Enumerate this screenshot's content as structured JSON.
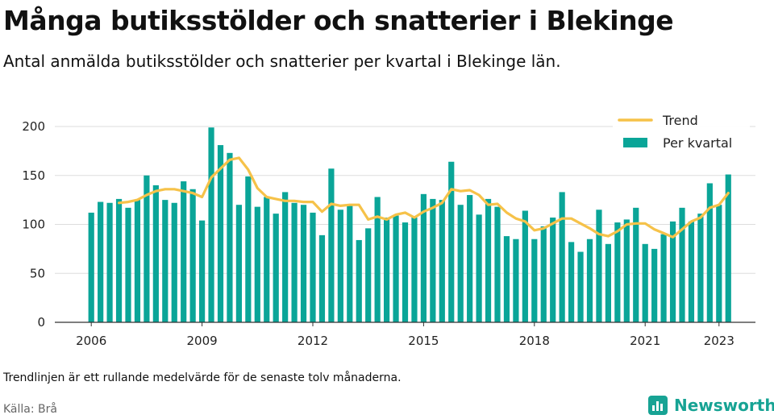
{
  "header": {
    "title": "Många butiksstölder och snatterier i Blekinge",
    "subtitle": "Antal anmälda butiksstölder och snatterier per kvartal i Blekinge län."
  },
  "footer": {
    "note": "Trendlinjen är ett rullande medelvärde för de senaste tolv månaderna.",
    "source": "Källa: Brå",
    "brand": "Newsworthy"
  },
  "colors": {
    "bars": "#0aa598",
    "trend": "#f6c249",
    "grid": "#dddddd"
  },
  "chart_data": {
    "type": "bar",
    "title": "Många butiksstölder och snatterier i Blekinge",
    "subtitle": "Antal anmälda butiksstölder och snatterier per kvartal i Blekinge län.",
    "xlabel": "",
    "ylabel": "",
    "ylim": [
      0,
      200
    ],
    "yticks": [
      "0",
      "50",
      "100",
      "150",
      "200"
    ],
    "xticks": [
      {
        "label": "2006",
        "year": 2006
      },
      {
        "label": "2009",
        "year": 2009
      },
      {
        "label": "2012",
        "year": 2012
      },
      {
        "label": "2015",
        "year": 2015
      },
      {
        "label": "2018",
        "year": 2018
      },
      {
        "label": "2021",
        "year": 2021
      },
      {
        "label": "2023",
        "year": 2023
      }
    ],
    "grid": true,
    "legend_position": "top-right",
    "start": "2006 Q1",
    "categories": [
      "2006 Q1",
      "2006 Q2",
      "2006 Q3",
      "2006 Q4",
      "2007 Q1",
      "2007 Q2",
      "2007 Q3",
      "2007 Q4",
      "2008 Q1",
      "2008 Q2",
      "2008 Q3",
      "2008 Q4",
      "2009 Q1",
      "2009 Q2",
      "2009 Q3",
      "2009 Q4",
      "2010 Q1",
      "2010 Q2",
      "2010 Q3",
      "2010 Q4",
      "2011 Q1",
      "2011 Q2",
      "2011 Q3",
      "2011 Q4",
      "2012 Q1",
      "2012 Q2",
      "2012 Q3",
      "2012 Q4",
      "2013 Q1",
      "2013 Q2",
      "2013 Q3",
      "2013 Q4",
      "2014 Q1",
      "2014 Q2",
      "2014 Q3",
      "2014 Q4",
      "2015 Q1",
      "2015 Q2",
      "2015 Q3",
      "2015 Q4",
      "2016 Q1",
      "2016 Q2",
      "2016 Q3",
      "2016 Q4",
      "2017 Q1",
      "2017 Q2",
      "2017 Q3",
      "2017 Q4",
      "2018 Q1",
      "2018 Q2",
      "2018 Q3",
      "2018 Q4",
      "2019 Q1",
      "2019 Q2",
      "2019 Q3",
      "2019 Q4",
      "2020 Q1",
      "2020 Q2",
      "2020 Q3",
      "2020 Q4",
      "2021 Q1",
      "2021 Q2",
      "2021 Q3",
      "2021 Q4",
      "2022 Q1",
      "2022 Q2",
      "2022 Q3",
      "2022 Q4",
      "2023 Q1",
      "2023 Q2"
    ],
    "series": [
      {
        "name": "Per kvartal",
        "kind": "bar",
        "values": [
          112,
          123,
          122,
          126,
          117,
          125,
          150,
          140,
          125,
          122,
          144,
          136,
          104,
          199,
          181,
          173,
          120,
          149,
          118,
          128,
          111,
          133,
          122,
          120,
          112,
          89,
          157,
          115,
          119,
          84,
          96,
          128,
          107,
          109,
          102,
          107,
          131,
          126,
          125,
          164,
          120,
          130,
          110,
          126,
          118,
          88,
          85,
          114,
          85,
          98,
          107,
          133,
          82,
          72,
          85,
          115,
          80,
          102,
          105,
          117,
          80,
          75,
          90,
          103,
          117,
          103,
          111,
          142,
          120,
          151
        ]
      },
      {
        "name": "Trend",
        "kind": "line",
        "points": [
          {
            "t": 2006.75,
            "v": 122
          },
          {
            "t": 2007.0,
            "v": 123
          },
          {
            "t": 2007.25,
            "v": 125
          },
          {
            "t": 2007.5,
            "v": 130
          },
          {
            "t": 2007.75,
            "v": 134
          },
          {
            "t": 2008.0,
            "v": 136
          },
          {
            "t": 2008.25,
            "v": 136
          },
          {
            "t": 2008.5,
            "v": 134
          },
          {
            "t": 2008.75,
            "v": 132
          },
          {
            "t": 2009.0,
            "v": 128
          },
          {
            "t": 2009.25,
            "v": 148
          },
          {
            "t": 2009.5,
            "v": 157
          },
          {
            "t": 2009.75,
            "v": 166
          },
          {
            "t": 2010.0,
            "v": 168
          },
          {
            "t": 2010.25,
            "v": 156
          },
          {
            "t": 2010.5,
            "v": 137
          },
          {
            "t": 2010.75,
            "v": 128
          },
          {
            "t": 2011.0,
            "v": 126
          },
          {
            "t": 2011.25,
            "v": 124
          },
          {
            "t": 2011.5,
            "v": 124
          },
          {
            "t": 2011.75,
            "v": 123
          },
          {
            "t": 2012.0,
            "v": 123
          },
          {
            "t": 2012.25,
            "v": 113
          },
          {
            "t": 2012.5,
            "v": 121
          },
          {
            "t": 2012.75,
            "v": 119
          },
          {
            "t": 2013.0,
            "v": 120
          },
          {
            "t": 2013.25,
            "v": 120
          },
          {
            "t": 2013.5,
            "v": 105
          },
          {
            "t": 2013.75,
            "v": 108
          },
          {
            "t": 2014.0,
            "v": 105
          },
          {
            "t": 2014.25,
            "v": 110
          },
          {
            "t": 2014.5,
            "v": 112
          },
          {
            "t": 2014.75,
            "v": 107
          },
          {
            "t": 2015.0,
            "v": 113
          },
          {
            "t": 2015.25,
            "v": 117
          },
          {
            "t": 2015.5,
            "v": 122
          },
          {
            "t": 2015.75,
            "v": 136
          },
          {
            "t": 2016.0,
            "v": 134
          },
          {
            "t": 2016.25,
            "v": 135
          },
          {
            "t": 2016.5,
            "v": 130
          },
          {
            "t": 2016.75,
            "v": 120
          },
          {
            "t": 2017.0,
            "v": 121
          },
          {
            "t": 2017.25,
            "v": 112
          },
          {
            "t": 2017.5,
            "v": 106
          },
          {
            "t": 2017.75,
            "v": 103
          },
          {
            "t": 2018.0,
            "v": 94
          },
          {
            "t": 2018.25,
            "v": 96
          },
          {
            "t": 2018.5,
            "v": 101
          },
          {
            "t": 2018.75,
            "v": 106
          },
          {
            "t": 2019.0,
            "v": 106
          },
          {
            "t": 2019.25,
            "v": 101
          },
          {
            "t": 2019.5,
            "v": 96
          },
          {
            "t": 2019.75,
            "v": 90
          },
          {
            "t": 2020.0,
            "v": 88
          },
          {
            "t": 2020.25,
            "v": 93
          },
          {
            "t": 2020.5,
            "v": 100
          },
          {
            "t": 2020.75,
            "v": 101
          },
          {
            "t": 2021.0,
            "v": 101
          },
          {
            "t": 2021.25,
            "v": 95
          },
          {
            "t": 2021.5,
            "v": 91
          },
          {
            "t": 2021.75,
            "v": 87
          },
          {
            "t": 2022.0,
            "v": 95
          },
          {
            "t": 2022.25,
            "v": 103
          },
          {
            "t": 2022.5,
            "v": 107
          },
          {
            "t": 2022.75,
            "v": 117
          },
          {
            "t": 2023.0,
            "v": 120
          },
          {
            "t": 2023.25,
            "v": 132
          }
        ]
      }
    ]
  }
}
